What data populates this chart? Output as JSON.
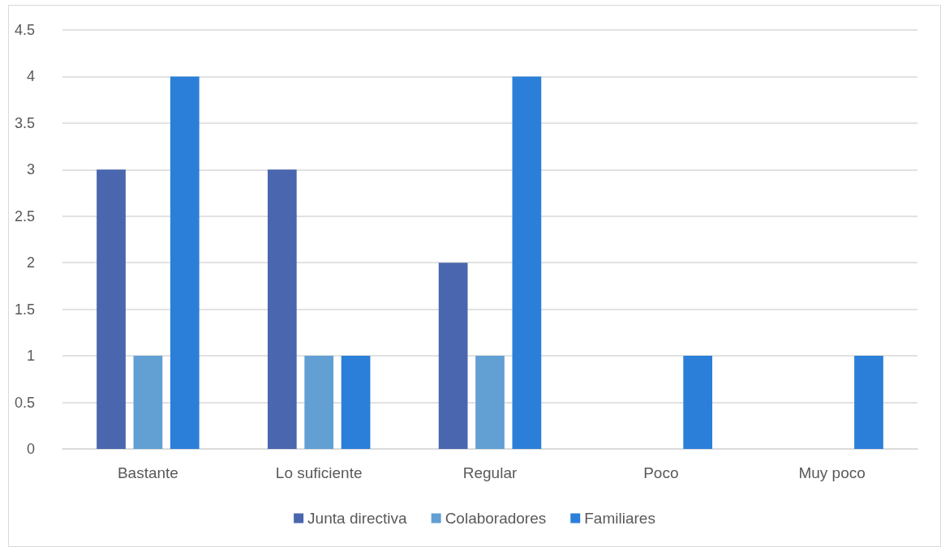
{
  "chart_data": {
    "type": "bar",
    "categories": [
      "Bastante",
      "Lo suficiente",
      "Regular",
      "Poco",
      "Muy poco"
    ],
    "series": [
      {
        "name": "Junta directiva",
        "color": "#4a66ae",
        "values": [
          3,
          3,
          2,
          0,
          0
        ]
      },
      {
        "name": "Colaboradores",
        "color": "#629fd3",
        "values": [
          1,
          1,
          1,
          0,
          0
        ]
      },
      {
        "name": "Familiares",
        "color": "#2b7fd9",
        "values": [
          4,
          1,
          4,
          1,
          1
        ]
      }
    ],
    "ylim": [
      0,
      4.5
    ],
    "yticks": [
      0,
      0.5,
      1,
      1.5,
      2,
      2.5,
      3,
      3.5,
      4,
      4.5
    ],
    "grid": "y",
    "legend": "bottom"
  }
}
